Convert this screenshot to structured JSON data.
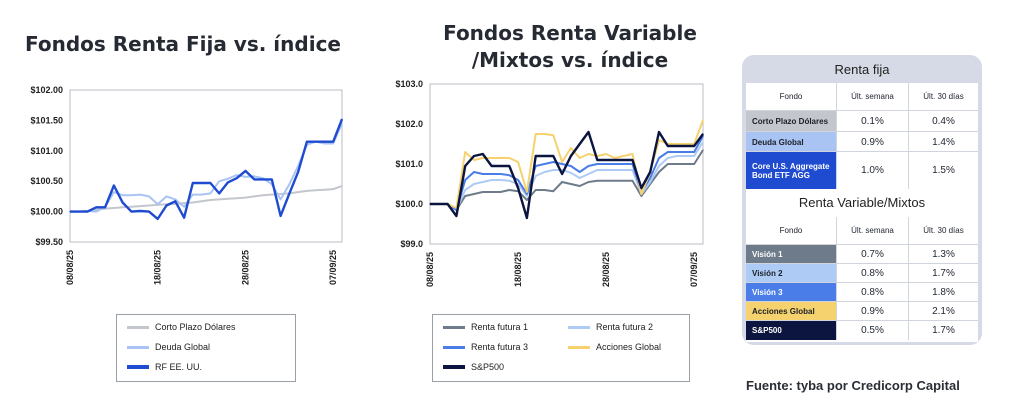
{
  "chart_data": [
    {
      "type": "line",
      "title": "Fondos Renta Fija vs. índice",
      "x": [
        "08/08/25",
        "09/08/25",
        "10/08/25",
        "11/08/25",
        "12/08/25",
        "13/08/25",
        "14/08/25",
        "15/08/25",
        "16/08/25",
        "17/08/25",
        "18/08/25",
        "19/08/25",
        "20/08/25",
        "21/08/25",
        "22/08/25",
        "23/08/25",
        "24/08/25",
        "25/08/25",
        "26/08/25",
        "27/08/25",
        "28/08/25",
        "29/08/25",
        "30/08/25",
        "31/08/25",
        "01/09/25",
        "02/09/25",
        "03/09/25",
        "04/09/25",
        "05/09/25",
        "06/09/25",
        "07/09/25",
        "08/09/25"
      ],
      "x_ticks": [
        "08/08/25",
        "18/08/25",
        "28/08/25",
        "07/09/25"
      ],
      "y_ticks": [
        "$99.50",
        "$100.00",
        "$100.50",
        "$101.00",
        "$101.50",
        "$102.00"
      ],
      "ylim": [
        99.5,
        102.0
      ],
      "grid": false,
      "legend_position": "bottom",
      "series": [
        {
          "name": "Corto Plazo Dólares",
          "color": "#c3c6cc",
          "values": [
            100.0,
            100.0,
            100.01,
            100.03,
            100.05,
            100.06,
            100.07,
            100.08,
            100.09,
            100.1,
            100.11,
            100.12,
            100.13,
            100.14,
            100.15,
            100.17,
            100.19,
            100.2,
            100.21,
            100.22,
            100.23,
            100.25,
            100.27,
            100.28,
            100.29,
            100.3,
            100.32,
            100.34,
            100.35,
            100.36,
            100.37,
            100.42
          ]
        },
        {
          "name": "Deuda Global",
          "color": "#a9c3f2",
          "values": [
            100.0,
            100.0,
            100.01,
            100.0,
            100.08,
            100.32,
            100.27,
            100.27,
            100.28,
            100.25,
            100.12,
            100.25,
            100.2,
            100.08,
            100.28,
            100.28,
            100.3,
            100.5,
            100.54,
            100.6,
            100.57,
            100.58,
            100.55,
            100.45,
            100.2,
            100.45,
            100.75,
            101.1,
            101.15,
            101.12,
            101.12,
            101.45
          ]
        },
        {
          "name": "RF EE. UU.",
          "color": "#1f4bd0",
          "values": [
            100.0,
            100.0,
            100.0,
            100.07,
            100.07,
            100.43,
            100.15,
            100.0,
            100.01,
            100.0,
            99.88,
            100.1,
            100.17,
            99.9,
            100.47,
            100.47,
            100.47,
            100.3,
            100.48,
            100.55,
            100.67,
            100.53,
            100.53,
            100.53,
            99.93,
            100.3,
            100.65,
            101.15,
            101.15,
            101.15,
            101.15,
            101.52
          ]
        }
      ]
    },
    {
      "type": "line",
      "title": "Fondos Renta Variable /Mixtos vs. índice",
      "x": [
        "08/08/25",
        "09/08/25",
        "10/08/25",
        "11/08/25",
        "12/08/25",
        "13/08/25",
        "14/08/25",
        "15/08/25",
        "16/08/25",
        "17/08/25",
        "18/08/25",
        "19/08/25",
        "20/08/25",
        "21/08/25",
        "22/08/25",
        "23/08/25",
        "24/08/25",
        "25/08/25",
        "26/08/25",
        "27/08/25",
        "28/08/25",
        "29/08/25",
        "30/08/25",
        "31/08/25",
        "01/09/25",
        "02/09/25",
        "03/09/25",
        "04/09/25",
        "05/09/25",
        "06/09/25",
        "07/09/25",
        "08/09/25"
      ],
      "x_ticks": [
        "08/08/25",
        "18/08/25",
        "28/08/25",
        "07/09/25"
      ],
      "y_ticks": [
        "$99.0",
        "$100.0",
        "$101.0",
        "$102.0",
        "$103.0"
      ],
      "ylim": [
        99.0,
        103.0
      ],
      "grid": false,
      "legend_position": "bottom",
      "series": [
        {
          "name": "Renta futura 1",
          "color": "#6e7b8a",
          "values": [
            100.0,
            100.0,
            100.0,
            99.85,
            100.2,
            100.25,
            100.3,
            100.3,
            100.3,
            100.35,
            100.32,
            100.1,
            100.35,
            100.35,
            100.32,
            100.55,
            100.5,
            100.45,
            100.55,
            100.58,
            100.58,
            100.58,
            100.58,
            100.58,
            100.2,
            100.5,
            100.8,
            101.0,
            101.0,
            101.0,
            101.0,
            101.35
          ]
        },
        {
          "name": "Renta futura 2",
          "color": "#aecbf5",
          "values": [
            100.0,
            100.0,
            100.0,
            99.85,
            100.35,
            100.5,
            100.55,
            100.6,
            100.6,
            100.58,
            100.5,
            100.2,
            100.7,
            100.8,
            100.85,
            100.85,
            100.78,
            100.65,
            100.75,
            100.85,
            100.85,
            100.85,
            100.85,
            100.85,
            100.25,
            100.55,
            100.95,
            101.15,
            101.2,
            101.2,
            101.2,
            101.55
          ]
        },
        {
          "name": "Renta futura 3",
          "color": "#4a7de8",
          "values": [
            100.0,
            100.0,
            100.0,
            99.85,
            100.6,
            100.8,
            100.75,
            100.75,
            100.75,
            100.72,
            100.6,
            100.25,
            100.95,
            101.0,
            101.05,
            101.0,
            100.95,
            100.8,
            100.95,
            101.0,
            101.0,
            101.0,
            101.0,
            101.0,
            100.3,
            100.65,
            101.15,
            101.3,
            101.3,
            101.3,
            101.3,
            101.7
          ]
        },
        {
          "name": "Acciones Global",
          "color": "#f5d26e",
          "values": [
            100.0,
            100.0,
            100.0,
            99.9,
            101.3,
            101.1,
            101.15,
            101.15,
            101.15,
            101.15,
            101.05,
            100.3,
            101.75,
            101.75,
            101.72,
            101.05,
            101.4,
            101.15,
            101.25,
            101.2,
            101.25,
            101.15,
            101.2,
            101.25,
            100.25,
            100.8,
            101.6,
            101.5,
            101.5,
            101.5,
            101.5,
            102.1
          ]
        },
        {
          "name": "S&P500",
          "color": "#0c1440",
          "values": [
            100.0,
            100.0,
            100.0,
            99.7,
            100.95,
            101.2,
            101.25,
            100.95,
            100.95,
            100.95,
            100.4,
            99.65,
            101.2,
            101.2,
            101.2,
            100.75,
            101.2,
            101.5,
            101.8,
            101.1,
            101.1,
            101.1,
            101.1,
            101.1,
            100.4,
            100.8,
            101.8,
            101.45,
            101.45,
            101.45,
            101.45,
            101.75
          ]
        }
      ]
    }
  ],
  "table": {
    "fija_title": "Renta fija",
    "variable_title": "Renta Variable/Mixtos",
    "headers": {
      "fondo": "Fondo",
      "semana": "Últ. semana",
      "dias": "Últ. 30 días"
    },
    "fija_rows": [
      {
        "name": "Corto Plazo Dólares",
        "semana": "0.1%",
        "dias": "0.4%",
        "bg": "#c3c6cc",
        "fg": "#1b1f27"
      },
      {
        "name": "Deuda Global",
        "semana": "0.9%",
        "dias": "1.4%",
        "bg": "#a9c3f2",
        "fg": "#1b1f27"
      },
      {
        "name": "Core U.S. Aggregate Bond ETF AGG",
        "semana": "1.0%",
        "dias": "1.5%",
        "bg": "#1f4bd0",
        "fg": "#ffffff"
      }
    ],
    "variable_rows": [
      {
        "name": "Visión 1",
        "semana": "0.7%",
        "dias": "1.3%",
        "bg": "#6e7b8a",
        "fg": "#ffffff"
      },
      {
        "name": "Visión 2",
        "semana": "0.8%",
        "dias": "1.7%",
        "bg": "#aecbf5",
        "fg": "#1b1f27"
      },
      {
        "name": "Visión 3",
        "semana": "0.8%",
        "dias": "1.8%",
        "bg": "#4a7de8",
        "fg": "#ffffff"
      },
      {
        "name": "Acciones Global",
        "semana": "0.9%",
        "dias": "2.1%",
        "bg": "#f5d26e",
        "fg": "#1b1f27"
      },
      {
        "name": "S&P500",
        "semana": "0.5%",
        "dias": "1.7%",
        "bg": "#0c1440",
        "fg": "#ffffff"
      }
    ]
  },
  "source": "Fuente: tyba por Credicorp Capital"
}
